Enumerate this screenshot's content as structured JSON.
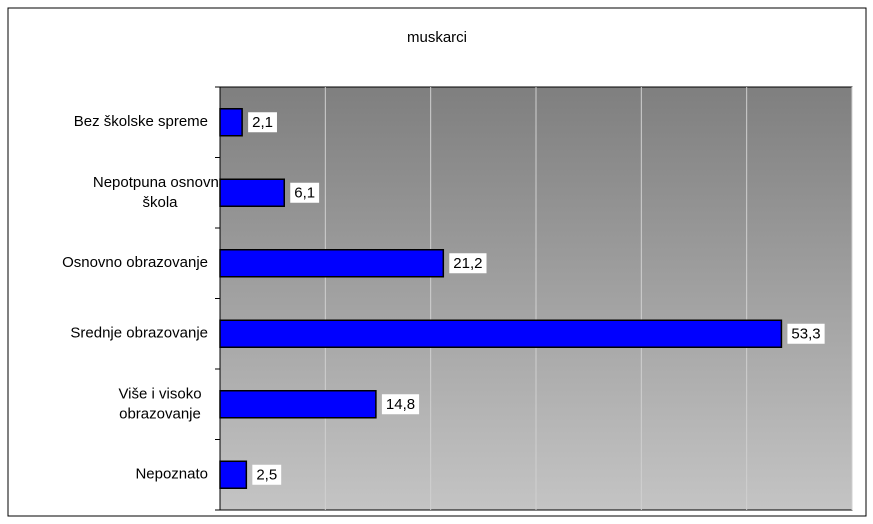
{
  "chart_data": {
    "type": "bar",
    "orientation": "horizontal",
    "title": "muskarci",
    "categories": [
      "Bez školske spreme",
      "Nepotpuna osnovna\nškola",
      "Osnovno obrazovanje",
      "Srednje obrazovanje",
      "Više i visoko\nobrazovanje",
      "Nepoznato"
    ],
    "values": [
      2.1,
      6.1,
      21.2,
      53.3,
      14.8,
      2.5
    ],
    "value_labels": [
      "2,1",
      "6,1",
      "21,2",
      "53,3",
      "14,8",
      "2,5"
    ],
    "color": "#0000ff",
    "xlim": [
      0,
      60
    ],
    "xticks": [
      0,
      10,
      20,
      30,
      40,
      50,
      60
    ],
    "grid": true
  }
}
